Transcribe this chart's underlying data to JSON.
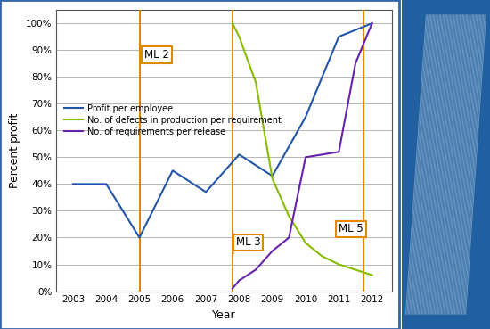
{
  "years_profit": [
    2003,
    2004,
    2005,
    2006,
    2007,
    2008,
    2009,
    2010,
    2011,
    2012
  ],
  "profit_values": [
    40,
    40,
    20,
    45,
    37,
    51,
    43,
    65,
    95,
    100
  ],
  "years_defects": [
    2007.8,
    2008,
    2008.5,
    2009,
    2009.5,
    2010,
    2010.5,
    2011,
    2011.5,
    2012
  ],
  "defects_values": [
    100,
    95,
    78,
    42,
    28,
    18,
    13,
    10,
    8,
    6
  ],
  "years_req": [
    2007.8,
    2008,
    2008.5,
    2009,
    2009.5,
    2010,
    2010.5,
    2011,
    2011.5,
    2012
  ],
  "req_values": [
    1,
    4,
    8,
    15,
    20,
    50,
    51,
    52,
    85,
    100
  ],
  "vline_ml2": 2005,
  "vline_ml3": 2007.8,
  "vline_ml5": 2011.75,
  "color_profit": "#2255AA",
  "color_defects": "#88BB00",
  "color_req": "#6622AA",
  "color_vline": "#E08800",
  "color_box_edge": "#E08800",
  "xlabel": "Year",
  "ylabel": "Percent profit",
  "yticks": [
    0,
    10,
    20,
    30,
    40,
    50,
    60,
    70,
    80,
    90,
    100
  ],
  "xticks": [
    2003,
    2004,
    2005,
    2006,
    2007,
    2008,
    2009,
    2010,
    2011,
    2012
  ],
  "legend_profit": "Profit per employee",
  "legend_defects": "No. of defects in production per requirement",
  "legend_req": "No. of requirements per release",
  "ml2_label": "ML 2",
  "ml3_label": "ML 3",
  "ml5_label": "ML 5",
  "background_color": "#FFFFFF",
  "right_panel_color": "#2060A0",
  "figsize": [
    5.5,
    3.69
  ],
  "dpi": 100,
  "border_color": "#3366AA"
}
